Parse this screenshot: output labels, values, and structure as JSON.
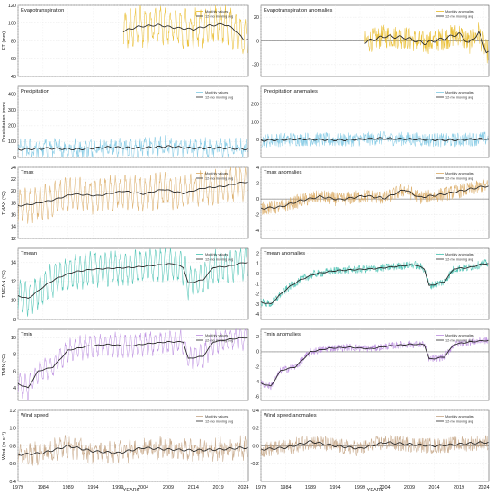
{
  "figure": {
    "xlabel": "YEARS",
    "line_label": "12-mo moving avg"
  },
  "chart_data": [
    {
      "id": "et",
      "type": "line",
      "title": "Evapotranspiration",
      "ylabel": "ET (mm)",
      "ylim": [
        40,
        120
      ],
      "yticks": [
        "40",
        "60",
        "80",
        "100",
        "120"
      ],
      "start": 2000,
      "color": "#e8b923",
      "base": 92,
      "trend": -2,
      "seasonal": 18,
      "noise": 8,
      "avg_pts": [
        [
          2000,
          91
        ],
        [
          2003,
          96
        ],
        [
          2007,
          98
        ],
        [
          2010,
          95
        ],
        [
          2014,
          93
        ],
        [
          2017,
          97
        ],
        [
          2020,
          99
        ],
        [
          2022,
          94
        ],
        [
          2024,
          82
        ]
      ],
      "legend": [
        "Monthly values",
        "12-mo moving avg"
      ]
    },
    {
      "id": "eta",
      "type": "line",
      "title": "Evapotranspiration anomalies",
      "ylabel": "",
      "ylim": [
        -30,
        30
      ],
      "yticks": [
        "-20",
        "0",
        "20"
      ],
      "zero": true,
      "start": 2000,
      "color": "#e8b923",
      "base": 0,
      "trend": -1,
      "seasonal": 0,
      "noise": 10,
      "avg_pts": [
        [
          2000,
          -1
        ],
        [
          2004,
          4
        ],
        [
          2008,
          3
        ],
        [
          2012,
          -2
        ],
        [
          2016,
          2
        ],
        [
          2019,
          6
        ],
        [
          2021,
          -2
        ],
        [
          2023,
          7
        ],
        [
          2024.5,
          -9
        ]
      ],
      "legend": [
        "Monthly anomalies",
        "12-mo moving avg"
      ]
    },
    {
      "id": "pr",
      "type": "line",
      "title": "Precipitation",
      "ylabel": "Precipitation (mm)",
      "ylim": [
        0,
        450
      ],
      "yticks": [
        "0",
        "100",
        "200",
        "300",
        "400"
      ],
      "start": 1979,
      "color": "#7ec8e3",
      "base": 58,
      "trend": 0,
      "seasonal": 30,
      "noise": 45,
      "avg_pts": [
        [
          1979,
          50
        ],
        [
          1985,
          58
        ],
        [
          1991,
          52
        ],
        [
          1997,
          65
        ],
        [
          2003,
          60
        ],
        [
          2009,
          70
        ],
        [
          2014,
          58
        ],
        [
          2019,
          62
        ],
        [
          2024,
          54
        ]
      ],
      "legend": [
        "Monthly values",
        "12-mo moving avg"
      ]
    },
    {
      "id": "pra",
      "type": "line",
      "title": "Precipitation anomalies",
      "ylabel": "",
      "ylim": [
        -100,
        300
      ],
      "yticks": [
        "0",
        "100",
        "200"
      ],
      "zero": true,
      "start": 1979,
      "color": "#7ec8e3",
      "base": 0,
      "trend": 0,
      "seasonal": 0,
      "noise": 40,
      "avg_pts": [
        [
          1979,
          -5
        ],
        [
          1987,
          4
        ],
        [
          1995,
          -3
        ],
        [
          2003,
          8
        ],
        [
          2011,
          2
        ],
        [
          2017,
          -4
        ],
        [
          2024,
          6
        ]
      ],
      "legend": [
        "Monthly anomalies",
        "12-mo moving avg"
      ]
    },
    {
      "id": "tmax",
      "type": "line",
      "title": "Tmax",
      "ylabel": "TMAX (°C)",
      "ylim": [
        12,
        24
      ],
      "yticks": [
        "12",
        "14",
        "16",
        "18",
        "20",
        "22",
        "24"
      ],
      "start": 1979,
      "color": "#d9a860",
      "base": 18,
      "trend": 3,
      "seasonal": 2.5,
      "noise": 0.8,
      "avg_pts": [
        [
          1979,
          17.5
        ],
        [
          1982,
          17.8
        ],
        [
          1986,
          18.5
        ],
        [
          1990,
          19.5
        ],
        [
          1995,
          19.2
        ],
        [
          2000,
          20
        ],
        [
          2004,
          19.5
        ],
        [
          2008,
          20.3
        ],
        [
          2012,
          19.6
        ],
        [
          2016,
          20.5
        ],
        [
          2020,
          20.8
        ],
        [
          2024,
          21.5
        ]
      ],
      "legend": [
        "Monthly values",
        "12-mo moving avg"
      ]
    },
    {
      "id": "tmaxa",
      "type": "line",
      "title": "Tmax anomalies",
      "ylabel": "",
      "ylim": [
        -5,
        4
      ],
      "yticks": [
        "-4",
        "-2",
        "0",
        "2",
        "4"
      ],
      "zero": true,
      "start": 1979,
      "color": "#d9a860",
      "base": -0.9,
      "trend": 2.3,
      "seasonal": 0,
      "noise": 0.9,
      "avg_pts": [
        [
          1979,
          -1.2
        ],
        [
          1983,
          -1
        ],
        [
          1987,
          -0.2
        ],
        [
          1991,
          0.3
        ],
        [
          1995,
          -0.1
        ],
        [
          2000,
          0.4
        ],
        [
          2004,
          0.1
        ],
        [
          2008,
          1.2
        ],
        [
          2011,
          0.2
        ],
        [
          2016,
          0.6
        ],
        [
          2020,
          1.1
        ],
        [
          2024,
          1.6
        ]
      ],
      "legend": [
        "Monthly anomalies",
        "12-mo moving avg"
      ]
    },
    {
      "id": "tmean",
      "type": "line",
      "title": "Tmean",
      "ylabel": "TMEAN (°C)",
      "ylim": [
        8,
        15.5
      ],
      "yticks": [
        "8",
        "10",
        "12",
        "14"
      ],
      "start": 1979,
      "color": "#3fbfae",
      "base": 13,
      "trend": 0.3,
      "seasonal": 1.6,
      "noise": 0.4,
      "avg_pts": [
        [
          1979,
          10.5
        ],
        [
          1981,
          10.2
        ],
        [
          1983,
          11
        ],
        [
          1985,
          11.8
        ],
        [
          1987,
          12.4
        ],
        [
          1990,
          13
        ],
        [
          1994,
          13.3
        ],
        [
          1998,
          13.4
        ],
        [
          2002,
          13.5
        ],
        [
          2006,
          13.7
        ],
        [
          2010,
          13.9
        ],
        [
          2012,
          13.5
        ],
        [
          2013,
          11.8
        ],
        [
          2016,
          12.2
        ],
        [
          2018,
          13.5
        ],
        [
          2021,
          13.6
        ],
        [
          2024,
          14
        ]
      ],
      "legend": [
        "Monthly values",
        "12-mo moving avg"
      ]
    },
    {
      "id": "tmeana",
      "type": "line",
      "title": "Tmean anomalies",
      "ylabel": "",
      "ylim": [
        -4.5,
        2.5
      ],
      "yticks": [
        "-4",
        "-3",
        "-2",
        "-1",
        "0",
        "1",
        "2"
      ],
      "zero": true,
      "start": 1979,
      "color": "#3fbfae",
      "base": 0.3,
      "trend": 0.4,
      "seasonal": 0,
      "noise": 0.4,
      "avg_pts": [
        [
          1979,
          -2.8
        ],
        [
          1981,
          -3
        ],
        [
          1983,
          -2
        ],
        [
          1985,
          -1.2
        ],
        [
          1987,
          -0.6
        ],
        [
          1990,
          0
        ],
        [
          1994,
          0.3
        ],
        [
          1998,
          0.4
        ],
        [
          2002,
          0.5
        ],
        [
          2006,
          0.7
        ],
        [
          2010,
          0.9
        ],
        [
          2012,
          0.5
        ],
        [
          2013,
          -1.2
        ],
        [
          2016,
          -0.8
        ],
        [
          2018,
          0.5
        ],
        [
          2021,
          0.6
        ],
        [
          2024,
          1
        ]
      ],
      "legend": [
        "Monthly anomalies",
        "12-mo moving avg"
      ]
    },
    {
      "id": "tmin",
      "type": "line",
      "title": "Tmin",
      "ylabel": "TMIN (°C)",
      "ylim": [
        2.5,
        11
      ],
      "yticks": [
        "4",
        "6",
        "8",
        "10"
      ],
      "start": 1979,
      "color": "#b98adf",
      "base": 8.5,
      "trend": 1,
      "seasonal": 1.2,
      "noise": 0.4,
      "avg_pts": [
        [
          1979,
          4.5
        ],
        [
          1981,
          4
        ],
        [
          1983,
          6
        ],
        [
          1986,
          6.5
        ],
        [
          1989,
          8.5
        ],
        [
          1993,
          9
        ],
        [
          1997,
          9.2
        ],
        [
          2001,
          9
        ],
        [
          2005,
          9.3
        ],
        [
          2009,
          9.5
        ],
        [
          2012,
          9.5
        ],
        [
          2013,
          7.5
        ],
        [
          2016,
          7.8
        ],
        [
          2018,
          9.5
        ],
        [
          2021,
          9.8
        ],
        [
          2024,
          10
        ]
      ],
      "legend": [
        "Monthly values",
        "12-mo moving avg"
      ]
    },
    {
      "id": "tmina",
      "type": "line",
      "title": "Tmin anomalies",
      "ylabel": "",
      "ylim": [
        -6.5,
        3
      ],
      "yticks": [
        "-6",
        "-4",
        "-2",
        "0",
        "2"
      ],
      "zero": true,
      "start": 1979,
      "color": "#b98adf",
      "base": 0.4,
      "trend": 0.7,
      "seasonal": 0,
      "noise": 0.5,
      "avg_pts": [
        [
          1979,
          -4.2
        ],
        [
          1981,
          -4.6
        ],
        [
          1983,
          -2.5
        ],
        [
          1986,
          -2
        ],
        [
          1989,
          0
        ],
        [
          1993,
          0.5
        ],
        [
          1997,
          0.6
        ],
        [
          2001,
          0.4
        ],
        [
          2005,
          0.8
        ],
        [
          2009,
          1
        ],
        [
          2012,
          1
        ],
        [
          2013,
          -1
        ],
        [
          2016,
          -0.7
        ],
        [
          2018,
          1
        ],
        [
          2021,
          1.3
        ],
        [
          2024,
          1.5
        ]
      ],
      "legend": [
        "Monthly anomalies",
        "12-mo moving avg"
      ]
    },
    {
      "id": "ws",
      "type": "line",
      "title": "Wind speed",
      "ylabel": "Wind (m s⁻¹)",
      "ylim": [
        0.4,
        1.2
      ],
      "yticks": [
        "0.4",
        "0.6",
        "0.8",
        "1.0",
        "1.2"
      ],
      "start": 1979,
      "color": "#c4a484",
      "base": 0.74,
      "trend": 0.02,
      "seasonal": 0.06,
      "noise": 0.09,
      "avg_pts": [
        [
          1979,
          0.7
        ],
        [
          1984,
          0.72
        ],
        [
          1989,
          0.8
        ],
        [
          1994,
          0.74
        ],
        [
          1999,
          0.72
        ],
        [
          2004,
          0.78
        ],
        [
          2009,
          0.76
        ],
        [
          2014,
          0.75
        ],
        [
          2019,
          0.76
        ],
        [
          2024,
          0.78
        ]
      ],
      "legend": [
        "Monthly values",
        "12-mo moving avg"
      ]
    },
    {
      "id": "wsa",
      "type": "line",
      "title": "Wind speed anomalies",
      "ylabel": "",
      "ylim": [
        -0.4,
        0.4
      ],
      "yticks": [
        "-0.2",
        "0.0",
        "0.2",
        "0.4"
      ],
      "zero": true,
      "start": 1979,
      "color": "#c4a484",
      "base": 0,
      "trend": 0.02,
      "seasonal": 0,
      "noise": 0.09,
      "avg_pts": [
        [
          1979,
          -0.04
        ],
        [
          1984,
          -0.02
        ],
        [
          1989,
          0.05
        ],
        [
          1994,
          0
        ],
        [
          1999,
          -0.03
        ],
        [
          2004,
          0.04
        ],
        [
          2009,
          0.02
        ],
        [
          2014,
          0
        ],
        [
          2019,
          0.02
        ],
        [
          2024,
          0.04
        ]
      ],
      "legend": [
        "Monthly anomalies",
        "12-mo moving avg"
      ]
    }
  ],
  "xaxis": {
    "range": [
      1979,
      2025
    ],
    "ticks": [
      "1979",
      "1984",
      "1989",
      "1994",
      "1999",
      "2004",
      "2009",
      "2014",
      "2019",
      "2024"
    ]
  }
}
